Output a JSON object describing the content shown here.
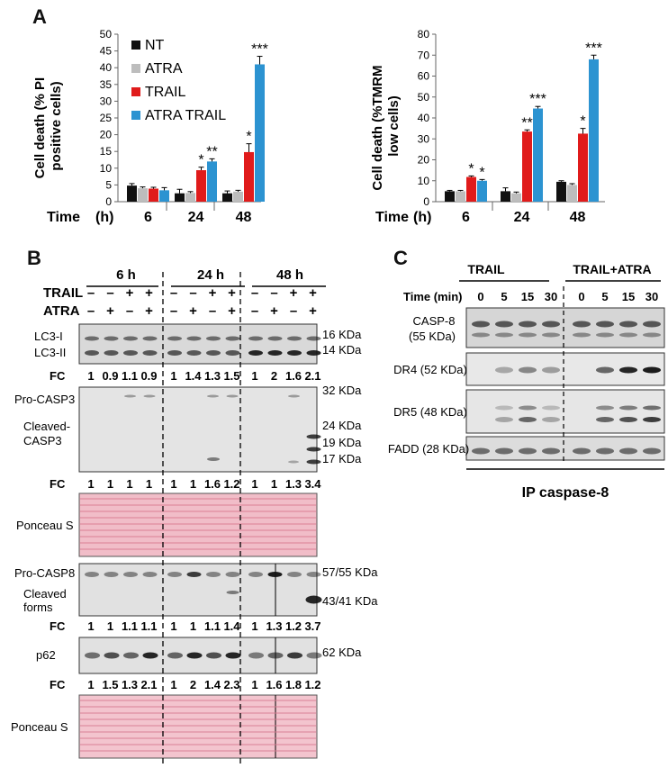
{
  "panels": {
    "a": "A",
    "b": "B",
    "c": "C"
  },
  "legend": {
    "nt": "NT",
    "atra": "ATRA",
    "trail": "TRAIL",
    "atra_trail": "ATRA TRAIL"
  },
  "colors": {
    "nt": "#111111",
    "atra": "#bdbdbd",
    "trail": "#e01b1b",
    "atra_trail": "#2c93d1"
  },
  "time_label": "Time",
  "time_unit": "(h)",
  "chart_data": [
    {
      "type": "bar",
      "title": "",
      "ylabel": "Cell death (% PI positive cells)",
      "ylabel_lines": [
        "Cell death (% PI",
        "positive cells)"
      ],
      "categories": [
        "6",
        "24",
        "48"
      ],
      "ylim": [
        0,
        50
      ],
      "yticks": [
        "0",
        "5",
        "10",
        "15",
        "20",
        "25",
        "30",
        "35",
        "40",
        "45",
        "50"
      ],
      "series": [
        {
          "name": "NT",
          "values": [
            4.8,
            2.5,
            2.5
          ],
          "errors": [
            0.6,
            1.2,
            0.7
          ]
        },
        {
          "name": "ATRA",
          "values": [
            4.0,
            2.6,
            3.0
          ],
          "errors": [
            0.4,
            0.4,
            0.4
          ]
        },
        {
          "name": "TRAIL",
          "values": [
            3.9,
            9.4,
            14.8
          ],
          "errors": [
            0.4,
            0.9,
            2.5
          ]
        },
        {
          "name": "ATRA TRAIL",
          "values": [
            3.4,
            12.0,
            41.0
          ],
          "errors": [
            0.8,
            0.8,
            2.4
          ]
        }
      ],
      "annotations": [
        [
          "",
          "",
          "",
          ""
        ],
        [
          "",
          "",
          "*",
          "**"
        ],
        [
          "",
          "",
          "*",
          "***"
        ]
      ]
    },
    {
      "type": "bar",
      "title": "",
      "ylabel": "Cell death (%TMRM low cells)",
      "ylabel_lines": [
        "Cell death (%TMRM",
        "low cells)"
      ],
      "categories": [
        "6",
        "24",
        "48"
      ],
      "ylim": [
        0,
        80
      ],
      "yticks": [
        "0",
        "10",
        "20",
        "30",
        "40",
        "50",
        "60",
        "70",
        "80"
      ],
      "series": [
        {
          "name": "NT",
          "values": [
            5.0,
            5.0,
            9.5
          ],
          "errors": [
            0.4,
            1.6,
            0.5
          ]
        },
        {
          "name": "ATRA",
          "values": [
            5.0,
            4.0,
            8.0
          ],
          "errors": [
            0.4,
            0.6,
            0.6
          ]
        },
        {
          "name": "TRAIL",
          "values": [
            11.8,
            33.5,
            32.5
          ],
          "errors": [
            0.5,
            0.8,
            2.5
          ]
        },
        {
          "name": "ATRA TRAIL",
          "values": [
            10.0,
            44.5,
            68.0
          ],
          "errors": [
            0.6,
            1.0,
            2.0
          ]
        }
      ],
      "annotations": [
        [
          "",
          "",
          "*",
          "*"
        ],
        [
          "",
          "",
          "**",
          "***"
        ],
        [
          "",
          "",
          "*",
          "***"
        ]
      ]
    }
  ],
  "blots_b": {
    "times": [
      "6 h",
      "24 h",
      "48 h"
    ],
    "rows": [
      {
        "label": "TRAIL",
        "signs": [
          "–",
          "–",
          "+",
          "+",
          "–",
          "–",
          "+",
          "+",
          "–",
          "–",
          "+",
          "+"
        ]
      },
      {
        "label": "ATRA",
        "signs": [
          "–",
          "+",
          "–",
          "+",
          "–",
          "+",
          "–",
          "+",
          "–",
          "+",
          "–",
          "+"
        ]
      }
    ],
    "fc_label": "FC",
    "lc3": {
      "labels": [
        "LC3-I",
        "LC3-II"
      ],
      "kda": [
        "16 KDa",
        "14 KDa"
      ],
      "fc": [
        "1",
        "0.9",
        "1.1",
        "0.9",
        "1",
        "1.4",
        "1.3",
        "1.5",
        "1",
        "2",
        "1.6",
        "2.1"
      ]
    },
    "casp3": {
      "labels": [
        "Pro-CASP3",
        "Cleaved-",
        "CASP3"
      ],
      "kda": [
        "32 KDa",
        "24 KDa",
        "19 KDa",
        "17 KDa"
      ],
      "fc": [
        "1",
        "1",
        "1",
        "1",
        "1",
        "1",
        "1.6",
        "1.2",
        "1",
        "1",
        "1.3",
        "3.4"
      ]
    },
    "ponceau": "Ponceau S",
    "casp8": {
      "labels": [
        "Pro-CASP8",
        "Cleaved",
        "forms"
      ],
      "kda": [
        "57/55 KDa",
        "43/41 KDa"
      ],
      "fc": [
        "1",
        "1",
        "1.1",
        "1.1",
        "1",
        "1",
        "1.1",
        "1.4",
        "1",
        "1.3",
        "1.2",
        "3.7"
      ]
    },
    "p62": {
      "label": "p62",
      "kda": "62 KDa",
      "fc": [
        "1",
        "1.5",
        "1.3",
        "2.1",
        "1",
        "2",
        "1.4",
        "2.3",
        "1",
        "1.6",
        "1.8",
        "1.2"
      ]
    }
  },
  "blots_c": {
    "groups": [
      "TRAIL",
      "TRAIL+ATRA"
    ],
    "time_label": "Time (min)",
    "times": [
      "0",
      "5",
      "15",
      "30",
      "0",
      "5",
      "15",
      "30"
    ],
    "rows": [
      "CASP-8",
      "(55 KDa)",
      "DR4 (52 KDa)",
      "DR5 (48 KDa)",
      "FADD (28 KDa)"
    ],
    "footer": "IP caspase-8"
  }
}
